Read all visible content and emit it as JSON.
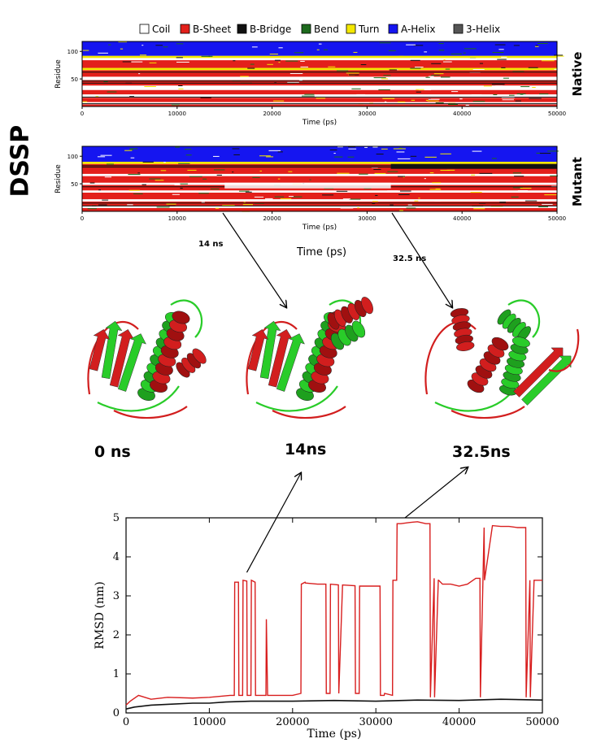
{
  "figure": {
    "dssp_label": "DSSP",
    "mid_axis_label": "Time (ps)",
    "snapshot_labels": [
      "0 ns",
      "14ns",
      "32.5ns"
    ],
    "callout_labels": [
      "14 ns",
      "32.5 ns"
    ]
  },
  "colors": {
    "coil": "#ffffff",
    "bsheet": "#e3201b",
    "bbridge": "#111111",
    "bend": "#1d6a1d",
    "turn": "#f4e800",
    "ahelix": "#1515f0",
    "helix3": "#555555",
    "mutant_line": "#d81e1e",
    "native_line": "#111111",
    "cartoon_red": "#d21e1e",
    "cartoon_green": "#29cc29"
  },
  "chart_data": [
    {
      "type": "heatmap",
      "panel": "Native",
      "legend": [
        "Coil",
        "B-Sheet",
        "B-Bridge",
        "Bend",
        "Turn",
        "A-Helix",
        "3-Helix"
      ],
      "xlabel": "Time (ps)",
      "ylabel": "Residue",
      "xlim": [
        0,
        50000
      ],
      "x_ticks": [
        "0",
        "10000",
        "20000",
        "30000",
        "40000",
        "50000"
      ],
      "y_ticks": [
        "100",
        "50"
      ],
      "ylim": [
        0,
        118
      ],
      "bands": [
        {
          "from": 0,
          "to": 4,
          "state": "bsheet"
        },
        {
          "from": 4,
          "to": 8,
          "state": "coil"
        },
        {
          "from": 8,
          "to": 16,
          "state": "bsheet"
        },
        {
          "from": 16,
          "to": 22,
          "state": "coil"
        },
        {
          "from": 22,
          "to": 30,
          "state": "bsheet"
        },
        {
          "from": 30,
          "to": 38,
          "state": "coil"
        },
        {
          "from": 38,
          "to": 48,
          "state": "bsheet"
        },
        {
          "from": 48,
          "to": 54,
          "state": "coil"
        },
        {
          "from": 54,
          "to": 66,
          "state": "bsheet"
        },
        {
          "from": 66,
          "to": 70,
          "state": "turn"
        },
        {
          "from": 70,
          "to": 84,
          "state": "bsheet"
        },
        {
          "from": 84,
          "to": 88,
          "state": "coil"
        },
        {
          "from": 88,
          "to": 92,
          "state": "turn"
        },
        {
          "from": 92,
          "to": 118,
          "state": "ahelix"
        }
      ]
    },
    {
      "type": "heatmap",
      "panel": "Mutant",
      "xlabel": "Time (ps)",
      "ylabel": "Residue",
      "xlim": [
        0,
        50000
      ],
      "x_ticks": [
        "0",
        "10000",
        "20000",
        "30000",
        "40000",
        "50000"
      ],
      "y_ticks": [
        "100",
        "50"
      ],
      "ylim": [
        0,
        118
      ],
      "bands": [
        {
          "from": 0,
          "to": 6,
          "state": "bsheet"
        },
        {
          "from": 6,
          "to": 10,
          "state": "coil"
        },
        {
          "from": 10,
          "to": 18,
          "state": "bsheet"
        },
        {
          "from": 18,
          "to": 22,
          "state": "coil"
        },
        {
          "from": 22,
          "to": 34,
          "state": "bsheet"
        },
        {
          "from": 34,
          "to": 38,
          "state": "coil"
        },
        {
          "from": 38,
          "to": 48,
          "state": "bsheet"
        },
        {
          "from": 48,
          "to": 52,
          "state": "coil"
        },
        {
          "from": 52,
          "to": 64,
          "state": "bsheet"
        },
        {
          "from": 64,
          "to": 68,
          "state": "coil"
        },
        {
          "from": 68,
          "to": 86,
          "state": "bsheet"
        },
        {
          "from": 86,
          "to": 90,
          "state": "turn"
        },
        {
          "from": 90,
          "to": 118,
          "state": "ahelix"
        }
      ]
    },
    {
      "type": "line",
      "xlabel": "Time (ps)",
      "ylabel": "RMSD (nm)",
      "xlim": [
        0,
        50000
      ],
      "ylim": [
        0,
        5
      ],
      "x_ticks": [
        "0",
        "10000",
        "20000",
        "30000",
        "40000",
        "50000"
      ],
      "y_ticks": [
        "0",
        "1",
        "2",
        "3",
        "4",
        "5"
      ],
      "series": [
        {
          "color": "mutant_line",
          "x": [
            0,
            500,
            1500,
            3000,
            5000,
            8000,
            10000,
            12500,
            13000,
            13050,
            13500,
            13550,
            14000,
            14050,
            14500,
            14550,
            15000,
            15050,
            15500,
            15550,
            16800,
            16850,
            17000,
            20000,
            21000,
            21050,
            21500,
            21550,
            23000,
            23500,
            24000,
            24050,
            24500,
            24550,
            25500,
            25550,
            26000,
            27500,
            27550,
            28000,
            28050,
            30500,
            30550,
            31000,
            31050,
            32000,
            32050,
            32500,
            32550,
            33000,
            34000,
            35000,
            36000,
            36500,
            36550,
            37000,
            37050,
            37500,
            37550,
            38000,
            39000,
            40000,
            41000,
            42000,
            42500,
            42550,
            43000,
            43050,
            44000,
            45000,
            46000,
            47000,
            48000,
            48050,
            48500,
            48550,
            49000,
            49050,
            50000
          ],
          "y": [
            0.2,
            0.3,
            0.45,
            0.35,
            0.4,
            0.38,
            0.4,
            0.45,
            0.45,
            3.35,
            3.35,
            0.45,
            0.45,
            3.4,
            3.38,
            0.45,
            0.45,
            3.4,
            3.35,
            0.45,
            0.45,
            2.4,
            0.45,
            0.45,
            0.5,
            3.3,
            3.35,
            3.33,
            3.3,
            3.3,
            3.3,
            0.5,
            0.5,
            3.3,
            3.28,
            0.5,
            3.28,
            3.26,
            0.5,
            0.5,
            3.25,
            3.25,
            0.45,
            0.45,
            0.5,
            0.45,
            3.4,
            3.4,
            4.85,
            4.85,
            4.88,
            4.9,
            4.85,
            4.85,
            0.4,
            3.45,
            0.4,
            3.4,
            3.4,
            3.3,
            3.3,
            3.25,
            3.3,
            3.45,
            3.45,
            0.4,
            4.75,
            3.4,
            4.8,
            4.78,
            4.78,
            4.75,
            4.75,
            0.4,
            3.4,
            0.4,
            3.4,
            3.4,
            3.4
          ]
        },
        {
          "color": "native_line",
          "x": [
            0,
            1000,
            3000,
            5000,
            8000,
            10000,
            12000,
            15000,
            20000,
            25000,
            30000,
            35000,
            40000,
            45000,
            50000
          ],
          "y": [
            0.1,
            0.15,
            0.2,
            0.22,
            0.25,
            0.25,
            0.28,
            0.3,
            0.3,
            0.32,
            0.3,
            0.33,
            0.32,
            0.35,
            0.33
          ]
        }
      ]
    }
  ]
}
